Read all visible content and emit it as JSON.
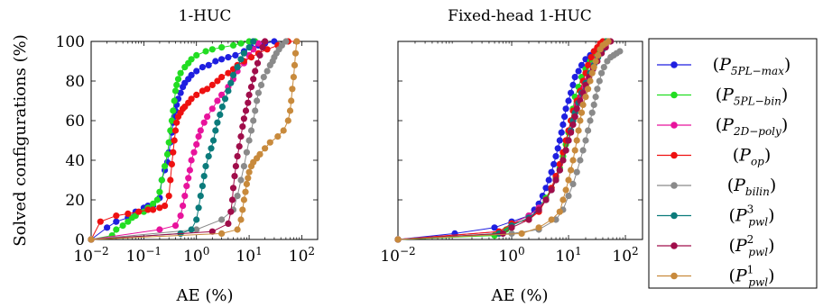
{
  "y_axis_label": "Solved configurations (%)",
  "chart_data": [
    {
      "type": "line",
      "title": "1-HUC",
      "xlabel": "AE (%)",
      "ylabel": "Solved configurations (%)",
      "xscale": "log",
      "xlim": [
        0.01,
        200
      ],
      "ylim": [
        0,
        100
      ],
      "xticks": [
        {
          "base": "10",
          "exp": "−2",
          "value": 0.01
        },
        {
          "base": "10",
          "exp": "−1",
          "value": 0.1
        },
        {
          "base": "10",
          "exp": "0",
          "value": 1
        },
        {
          "base": "10",
          "exp": "1",
          "value": 10
        },
        {
          "base": "10",
          "exp": "2",
          "value": 100
        }
      ],
      "yticks": [
        "0",
        "20",
        "40",
        "60",
        "80",
        "100"
      ],
      "series": [
        {
          "key": "P5PLmax",
          "color": "#1f1fe0",
          "x": [
            0.01,
            0.02,
            0.03,
            0.05,
            0.07,
            0.1,
            0.12,
            0.15,
            0.2,
            0.22,
            0.25,
            0.28,
            0.3,
            0.32,
            0.34,
            0.36,
            0.38,
            0.4,
            0.42,
            0.45,
            0.5,
            0.55,
            0.6,
            0.7,
            0.8,
            1.0,
            1.3,
            1.7,
            2.3,
            3.0,
            4.0,
            5.5,
            8.0,
            11.0,
            15.0,
            20.0,
            30.0
          ],
          "y": [
            0,
            6,
            9,
            11,
            14,
            16,
            17,
            17,
            21,
            30,
            35,
            39,
            44,
            49,
            54,
            59,
            62,
            65,
            68,
            71,
            74,
            77,
            79,
            81,
            83,
            85,
            87,
            88,
            90,
            91,
            92,
            93,
            95,
            97,
            98,
            99,
            100
          ]
        },
        {
          "key": "P5PLbin",
          "color": "#22dd22",
          "x": [
            0.01,
            0.025,
            0.03,
            0.04,
            0.05,
            0.06,
            0.07,
            0.1,
            0.12,
            0.15,
            0.18,
            0.2,
            0.22,
            0.25,
            0.28,
            0.3,
            0.32,
            0.34,
            0.36,
            0.38,
            0.4,
            0.42,
            0.45,
            0.5,
            0.6,
            0.7,
            0.8,
            1.0,
            1.5,
            2.0,
            3.0,
            5.0,
            7.0,
            10.0,
            13.0
          ],
          "y": [
            0,
            2,
            5,
            7,
            9,
            11,
            12,
            14,
            16,
            18,
            20,
            24,
            30,
            37,
            43,
            49,
            55,
            60,
            65,
            70,
            75,
            78,
            81,
            84,
            87,
            89,
            91,
            93,
            95,
            96,
            97,
            98,
            99,
            100,
            100
          ]
        },
        {
          "key": "P2Dpoly",
          "color": "#e8139c",
          "x": [
            0.01,
            0.2,
            0.4,
            0.5,
            0.55,
            0.6,
            0.65,
            0.7,
            0.75,
            0.8,
            0.9,
            1.0,
            1.1,
            1.2,
            1.4,
            1.6,
            2.0,
            2.5,
            3.0,
            4.0,
            5.0,
            6.0,
            8.0,
            10.0,
            12.0,
            15.0,
            20.0
          ],
          "y": [
            0,
            5,
            7,
            12,
            17,
            22,
            27,
            31,
            35,
            40,
            44,
            48,
            52,
            55,
            59,
            62,
            66,
            70,
            73,
            77,
            81,
            85,
            89,
            93,
            96,
            99,
            100
          ]
        },
        {
          "key": "Pop",
          "color": "#ee1111",
          "x": [
            0.01,
            0.015,
            0.03,
            0.05,
            0.08,
            0.12,
            0.15,
            0.2,
            0.25,
            0.3,
            0.32,
            0.34,
            0.36,
            0.38,
            0.4,
            0.42,
            0.45,
            0.5,
            0.55,
            0.6,
            0.7,
            0.8,
            1.0,
            1.3,
            1.6,
            2.0,
            2.5,
            3.0,
            4.0,
            5.0,
            6.0,
            8.0,
            11.0,
            15.0,
            22.0,
            35.0,
            55.0,
            80.0
          ],
          "y": [
            0,
            9,
            12,
            13,
            14,
            15,
            15,
            16,
            17,
            22,
            30,
            38,
            44,
            50,
            55,
            59,
            62,
            64,
            66,
            67,
            69,
            71,
            73,
            75,
            76,
            78,
            80,
            82,
            84,
            86,
            88,
            90,
            92,
            94,
            96,
            98,
            100,
            100
          ]
        },
        {
          "key": "Pbilin",
          "color": "#8a8a8a",
          "x": [
            0.01,
            1.0,
            3.0,
            5.0,
            6.0,
            7.0,
            8.0,
            9.0,
            10.0,
            11.0,
            12.0,
            13.0,
            14.0,
            15.0,
            17.0,
            19.0,
            22.0,
            25.0,
            28.0,
            30.0,
            33.0,
            37.0,
            42.0,
            50.0
          ],
          "y": [
            0,
            5,
            10,
            15,
            22,
            30,
            37,
            44,
            50,
            55,
            60,
            65,
            70,
            74,
            78,
            82,
            85,
            88,
            90,
            92,
            94,
            96,
            98,
            100
          ]
        },
        {
          "key": "Ppwl3",
          "color": "#0b7b7b",
          "x": [
            0.01,
            0.5,
            0.8,
            1.0,
            1.1,
            1.2,
            1.3,
            1.4,
            1.5,
            1.7,
            1.9,
            2.1,
            2.3,
            2.5,
            2.8,
            3.1,
            3.5,
            4.0,
            4.5,
            5.0,
            6.0,
            7.0,
            8.0,
            10.0,
            12.0
          ],
          "y": [
            0,
            3,
            5,
            10,
            16,
            22,
            27,
            32,
            37,
            42,
            46,
            50,
            55,
            59,
            63,
            67,
            71,
            75,
            79,
            83,
            87,
            91,
            94,
            97,
            100
          ]
        },
        {
          "key": "Ppwl2",
          "color": "#a00d4a",
          "x": [
            0.01,
            2.0,
            4.0,
            4.5,
            4.8,
            5.0,
            5.3,
            5.6,
            6.0,
            6.5,
            7.0,
            7.5,
            8.0,
            8.7,
            9.5,
            10.0,
            11.0,
            12.0,
            13.0,
            14.5,
            16.0,
            18.0,
            20.0
          ],
          "y": [
            0,
            4,
            8,
            14,
            20,
            26,
            32,
            37,
            42,
            47,
            52,
            57,
            61,
            65,
            69,
            73,
            77,
            81,
            85,
            89,
            93,
            97,
            100
          ]
        },
        {
          "key": "Ppwl1",
          "color": "#c88a3c",
          "x": [
            0.01,
            3.0,
            6.0,
            7.0,
            7.5,
            8.0,
            8.5,
            9.0,
            9.5,
            10.0,
            11.0,
            12.0,
            14.0,
            16.0,
            20.0,
            25.0,
            35.0,
            45.0,
            55.0,
            60.0,
            63.0,
            66.0,
            70.0,
            73.0,
            76.0,
            80.0
          ],
          "y": [
            0,
            3,
            5,
            10,
            15,
            20,
            24,
            28,
            31,
            34,
            37,
            39,
            41,
            43,
            46,
            49,
            52,
            55,
            60,
            65,
            70,
            76,
            82,
            88,
            94,
            100
          ]
        }
      ]
    },
    {
      "type": "line",
      "title": "Fixed-head 1-HUC",
      "xlabel": "AE (%)",
      "xscale": "log",
      "xlim": [
        0.01,
        200
      ],
      "ylim": [
        0,
        100
      ],
      "xticks": [
        {
          "base": "10",
          "exp": "−2",
          "value": 0.01
        },
        {
          "base": "10",
          "exp": "0",
          "value": 1
        },
        {
          "base": "10",
          "exp": "1",
          "value": 10
        },
        {
          "base": "10",
          "exp": "2",
          "value": 100
        }
      ],
      "series": [
        {
          "key": "P5PLmax",
          "color": "#1f1fe0",
          "x": [
            0.01,
            0.1,
            0.5,
            1.0,
            2.0,
            2.5,
            3.0,
            3.5,
            4.0,
            4.5,
            5.0,
            5.5,
            6.0,
            6.5,
            7.0,
            7.5,
            8.0,
            8.5,
            9.0,
            10.0,
            11.0,
            12.0,
            13.0,
            15.0,
            17.0,
            20.0,
            24.0,
            28.0,
            33.0,
            38.0,
            45.0
          ],
          "y": [
            0,
            3,
            6,
            9,
            12,
            15,
            18,
            22,
            26,
            30,
            34,
            38,
            42,
            46,
            50,
            54,
            58,
            62,
            66,
            70,
            74,
            78,
            82,
            85,
            88,
            91,
            93,
            95,
            97,
            99,
            100
          ]
        },
        {
          "key": "P5PLbin",
          "color": "#22dd22",
          "x": [
            0.01,
            0.5,
            0.8,
            1.0,
            2.0,
            3.0,
            4.0,
            5.0,
            6.0,
            7.0,
            8.0,
            9.0,
            10.0,
            11.0,
            12.0,
            13.0,
            15.0,
            17.0,
            20.0,
            24.0,
            30.0,
            37.0,
            45.0
          ],
          "y": [
            0,
            2,
            5,
            8,
            12,
            16,
            21,
            26,
            31,
            36,
            42,
            48,
            54,
            60,
            66,
            72,
            77,
            82,
            86,
            90,
            94,
            97,
            100
          ]
        },
        {
          "key": "P2Dpoly",
          "color": "#e8139c",
          "x": [
            0.01,
            0.6,
            1.0,
            2.0,
            3.0,
            4.0,
            5.0,
            6.0,
            7.0,
            8.0,
            9.0,
            10.0,
            11.0,
            12.0,
            13.0,
            14.0,
            16.0,
            18.0,
            20.0,
            23.0,
            27.0,
            32.0,
            38.0,
            45.0,
            50.0
          ],
          "y": [
            0,
            4,
            8,
            12,
            16,
            20,
            25,
            30,
            35,
            40,
            45,
            50,
            55,
            60,
            64,
            68,
            72,
            76,
            80,
            84,
            88,
            92,
            95,
            98,
            100
          ]
        },
        {
          "key": "Pop",
          "color": "#ee1111",
          "x": [
            0.01,
            0.6,
            1.0,
            2.0,
            3.0,
            4.0,
            5.0,
            6.0,
            7.0,
            8.0,
            9.0,
            10.0,
            11.0,
            12.0,
            14.0,
            16.0,
            18.0,
            20.0,
            22.0,
            25.0,
            28.0,
            32.0,
            36.0,
            40.0
          ],
          "y": [
            0,
            4,
            8,
            10,
            14,
            20,
            26,
            32,
            38,
            44,
            50,
            55,
            60,
            65,
            70,
            75,
            80,
            84,
            88,
            92,
            95,
            97,
            99,
            100
          ]
        },
        {
          "key": "Pbilin",
          "color": "#8a8a8a",
          "x": [
            0.01,
            1.0,
            3.0,
            6.0,
            8.0,
            10.0,
            12.0,
            14.0,
            16.0,
            18.0,
            20.0,
            22.0,
            24.0,
            26.0,
            28.0,
            30.0,
            32.0,
            35.0,
            38.0,
            42.0,
            48.0,
            55.0,
            62.0,
            70.0,
            80.0
          ],
          "y": [
            0,
            3,
            5,
            10,
            15,
            22,
            28,
            34,
            40,
            45,
            50,
            55,
            60,
            64,
            68,
            72,
            76,
            80,
            84,
            87,
            90,
            92,
            93,
            94,
            95
          ]
        },
        {
          "key": "Ppwl3",
          "color": "#0b7b7b",
          "x": [
            0.01,
            0.6,
            1.0,
            2.0,
            3.0,
            4.0,
            5.0,
            6.0,
            7.0,
            8.0,
            9.0,
            10.0,
            11.0,
            12.0,
            13.0,
            15.0,
            17.0,
            20.0,
            24.0,
            28.0,
            33.0,
            40.0,
            48.0
          ],
          "y": [
            0,
            3,
            7,
            11,
            15,
            20,
            25,
            30,
            35,
            40,
            45,
            50,
            55,
            60,
            64,
            69,
            74,
            79,
            84,
            88,
            92,
            96,
            100
          ]
        },
        {
          "key": "Ppwl2",
          "color": "#a00d4a",
          "x": [
            0.01,
            0.7,
            1.0,
            2.0,
            3.0,
            4.0,
            5.0,
            6.0,
            7.0,
            8.0,
            9.0,
            10.0,
            11.0,
            12.0,
            13.0,
            14.0,
            16.0,
            18.0,
            20.0,
            23.0,
            27.0,
            32.0,
            38.0,
            45.0,
            55.0
          ],
          "y": [
            0,
            3,
            6,
            10,
            15,
            20,
            25,
            30,
            35,
            40,
            45,
            50,
            54,
            58,
            62,
            66,
            70,
            74,
            78,
            82,
            86,
            90,
            94,
            97,
            100
          ]
        },
        {
          "key": "Ppwl1",
          "color": "#c88a3c",
          "x": [
            0.01,
            1.5,
            3.0,
            5.0,
            7.0,
            8.0,
            9.0,
            10.0,
            11.0,
            12.0,
            13.0,
            14.0,
            15.0,
            16.0,
            17.0,
            18.0,
            20.0,
            22.0,
            24.0,
            26.0,
            28.0,
            30.0,
            33.0,
            36.0,
            40.0,
            45.0,
            50.0
          ],
          "y": [
            0,
            3,
            6,
            10,
            14,
            20,
            25,
            30,
            35,
            40,
            45,
            50,
            55,
            60,
            64,
            68,
            72,
            76,
            80,
            84,
            87,
            90,
            93,
            96,
            98,
            99,
            100
          ]
        }
      ]
    }
  ],
  "legend": [
    {
      "key": "P5PLmax",
      "base": "P",
      "sub": "5PL−max",
      "sup": "",
      "color": "#1f1fe0"
    },
    {
      "key": "P5PLbin",
      "base": "P",
      "sub": "5PL−bin",
      "sup": "",
      "color": "#22dd22"
    },
    {
      "key": "P2Dpoly",
      "base": "P",
      "sub": "2D−poly",
      "sup": "",
      "color": "#e8139c"
    },
    {
      "key": "Pop",
      "base": "P",
      "sub": "op",
      "sup": "",
      "color": "#ee1111"
    },
    {
      "key": "Pbilin",
      "base": "P",
      "sub": "bilin",
      "sup": "",
      "color": "#8a8a8a"
    },
    {
      "key": "Ppwl3",
      "base": "P",
      "sub": "pwl",
      "sup": "3",
      "color": "#0b7b7b"
    },
    {
      "key": "Ppwl2",
      "base": "P",
      "sub": "pwl",
      "sup": "2",
      "color": "#a00d4a"
    },
    {
      "key": "Ppwl1",
      "base": "P",
      "sub": "pwl",
      "sup": "1",
      "color": "#c88a3c"
    }
  ]
}
